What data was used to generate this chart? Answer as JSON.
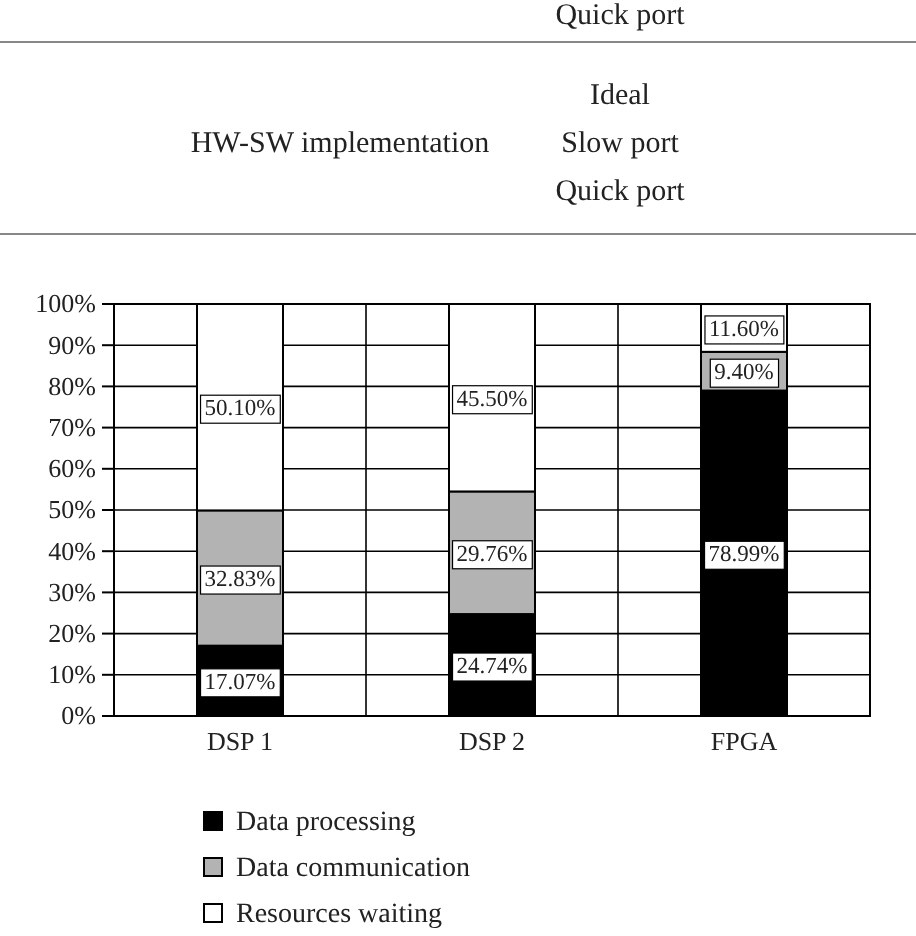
{
  "chart_data": {
    "type": "bar",
    "stacked": true,
    "categories": [
      "DSP 1",
      "DSP 2",
      "FPGA"
    ],
    "series": [
      {
        "name": "Data processing",
        "color": "#000000",
        "values": [
          17.07,
          24.74,
          78.99
        ],
        "value_labels": [
          "17.07%",
          "24.74%",
          "78.99%"
        ]
      },
      {
        "name": "Data communication",
        "color": "#b3b3b3",
        "values": [
          32.83,
          29.76,
          9.4
        ],
        "value_labels": [
          "32.83%",
          "29.76%",
          "9.40%"
        ]
      },
      {
        "name": "Resources waiting",
        "color": "#ffffff",
        "values": [
          50.1,
          45.5,
          11.6
        ],
        "value_labels": [
          "50.10%",
          "45.50%",
          "11.60%"
        ]
      }
    ],
    "ylim": [
      0,
      100
    ],
    "yticks": [
      {
        "value": 0,
        "label": "0%"
      },
      {
        "value": 10,
        "label": "10%"
      },
      {
        "value": 20,
        "label": "20%"
      },
      {
        "value": 30,
        "label": "30%"
      },
      {
        "value": 40,
        "label": "40%"
      },
      {
        "value": 50,
        "label": "50%"
      },
      {
        "value": 60,
        "label": "60%"
      },
      {
        "value": 70,
        "label": "70%"
      },
      {
        "value": 80,
        "label": "80%"
      },
      {
        "value": 90,
        "label": "90%"
      },
      {
        "value": 100,
        "label": "100%"
      }
    ],
    "grid": true,
    "legend": "bottom",
    "annotations": [
      "Quick port",
      "HW-SW implementation",
      "Ideal",
      "Slow port",
      "Quick port"
    ]
  }
}
